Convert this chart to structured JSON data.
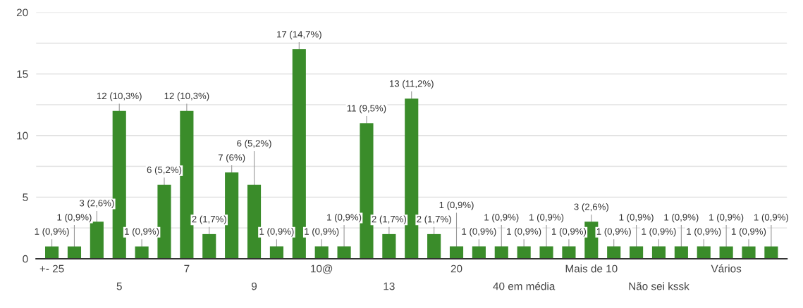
{
  "chart_data": {
    "type": "bar",
    "categories": [
      "+- 25",
      null,
      null,
      "5",
      null,
      null,
      "7",
      null,
      null,
      "9",
      null,
      null,
      "10@",
      null,
      null,
      "13",
      null,
      null,
      "20",
      null,
      null,
      "40 em média",
      null,
      null,
      "Mais de 10",
      null,
      null,
      "Não sei kssk",
      null,
      null,
      "Vários",
      null,
      null
    ],
    "values": [
      1,
      1,
      3,
      12,
      1,
      6,
      12,
      2,
      7,
      6,
      1,
      17,
      1,
      1,
      11,
      2,
      13,
      2,
      1,
      1,
      1,
      1,
      1,
      1,
      3,
      1,
      1,
      1,
      1,
      1,
      1,
      1,
      1
    ],
    "value_labels": [
      "1 (0,9%)",
      "1 (0,9%)",
      "3 (2,6%)",
      "12 (10,3%)",
      "1 (0,9%)",
      "6 (5,2%)",
      "12 (10,3%)",
      "2 (1,7%)",
      "7 (6%)",
      "6 (5,2%)",
      "1 (0,9%)",
      "17 (14,7%)",
      "1 (0,9%)",
      "1 (0,9%)",
      "11 (9,5%)",
      "2 (1,7%)",
      "13 (11,2%)",
      "2 (1,7%)",
      "1 (0,9%)",
      "1 (0,9%)",
      "1 (0,9%)",
      "1 (0,9%)",
      "1 (0,9%)",
      "1 (0,9%)",
      "3 (2,6%)",
      "1 (0,9%)",
      "1 (0,9%)",
      "1 (0,9%)",
      "1 (0,9%)",
      "1 (0,9%)",
      "1 (0,9%)",
      "1 (0,9%)",
      "1 (0,9%)"
    ],
    "color": "#3a8c2a",
    "ylim": [
      0,
      20
    ],
    "yticks": [
      0,
      {
        "value": 2.5,
        "label": null
      },
      5,
      {
        "value": 7.5,
        "label": null
      },
      10,
      {
        "value": 12.5,
        "label": null
      },
      15,
      {
        "value": 17.5,
        "label": null
      },
      20
    ],
    "grid": "y"
  }
}
